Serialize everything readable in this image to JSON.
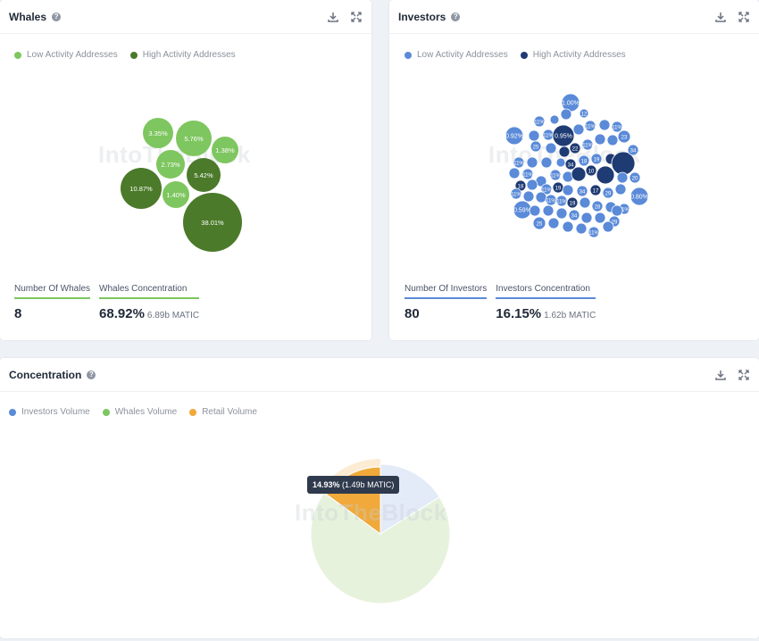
{
  "whales": {
    "title": "Whales",
    "legend": [
      {
        "label": "Low Activity Addresses",
        "color": "#7ec65f"
      },
      {
        "label": "High Activity Addresses",
        "color": "#4b7a2a"
      }
    ],
    "bubbles": [
      {
        "label": "3.35%",
        "type": "low"
      },
      {
        "label": "5.76%",
        "type": "low"
      },
      {
        "label": "1.38%",
        "type": "low"
      },
      {
        "label": "2.73%",
        "type": "low"
      },
      {
        "label": "5.42%",
        "type": "high"
      },
      {
        "label": "10.87%",
        "type": "high"
      },
      {
        "label": "1.40%",
        "type": "low"
      },
      {
        "label": "38.01%",
        "type": "high"
      }
    ],
    "stats": {
      "count_label": "Number Of Whales",
      "count_value": "8",
      "conc_label": "Whales Concentration",
      "conc_value": "68.92%",
      "conc_sub": "6.89b MATIC"
    }
  },
  "investors": {
    "title": "Investors",
    "legend": [
      {
        "label": "Low Activity Addresses",
        "color": "#5a8ad8"
      },
      {
        "label": "High Activity Addresses",
        "color": "#1f3b73"
      }
    ],
    "bubble_labels": [
      "1.00%",
      "0.92%",
      "0.95%",
      "0.80%",
      "0.59%",
      "11%",
      "12",
      "15",
      "20",
      "23",
      "26",
      "28",
      "34",
      "10",
      "19",
      "17",
      "18",
      "25",
      "29",
      "22"
    ],
    "stats": {
      "count_label": "Number Of Investors",
      "count_value": "80",
      "conc_label": "Investors Concentration",
      "conc_value": "16.15%",
      "conc_sub": "1.62b MATIC"
    }
  },
  "concentration": {
    "title": "Concentration",
    "legend": [
      {
        "label": "Investors Volume",
        "color": "#5a8ad8"
      },
      {
        "label": "Whales Volume",
        "color": "#7ec65f"
      },
      {
        "label": "Retail Volume",
        "color": "#f0a93a"
      }
    ],
    "tooltip_value": "14.93%",
    "tooltip_sub": "(1.49b MATIC)"
  },
  "chart_data": {
    "type": "pie",
    "categories": [
      "Investors Volume",
      "Whales Volume",
      "Retail Volume"
    ],
    "values": [
      16.15,
      68.92,
      14.93
    ],
    "legend_position": "top-left"
  },
  "watermark": "IntoTheBlock"
}
